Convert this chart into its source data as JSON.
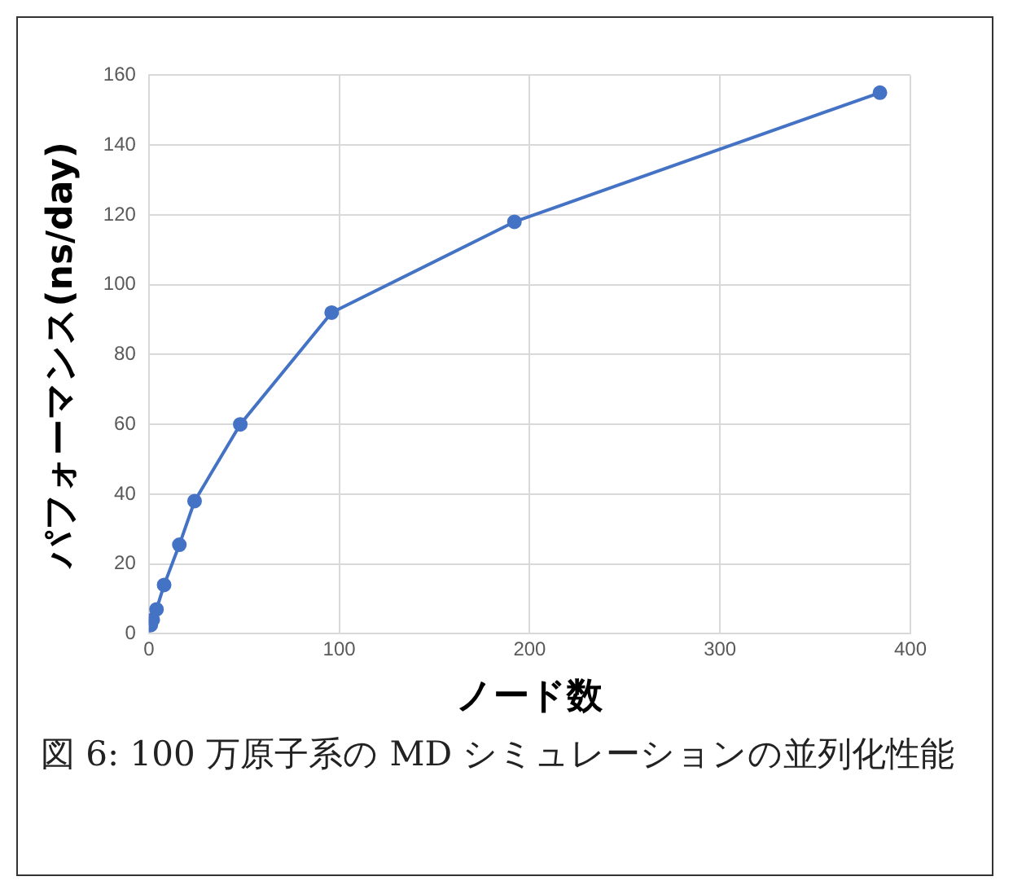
{
  "chart_data": {
    "type": "line",
    "xlabel": "ノード数",
    "ylabel": "パフォーマンス(ns/day)",
    "x": [
      1,
      2,
      4,
      8,
      16,
      24,
      48,
      96,
      192,
      384
    ],
    "series": [
      {
        "color": "#4472c4",
        "values": [
          2.5,
          4,
          7,
          14,
          25.5,
          38,
          60,
          92,
          118,
          155
        ]
      }
    ],
    "xlim": [
      0,
      400
    ],
    "xticks": [
      0,
      100,
      200,
      300,
      400
    ],
    "ylim": [
      0,
      160
    ],
    "yticks": [
      0,
      20,
      40,
      60,
      80,
      100,
      120,
      140,
      160
    ],
    "grid": true,
    "legend": false,
    "marker": "circle",
    "line_style": "solid",
    "annotations": [
      "図 6: 100 万原子系の MD シミュレーションの並列化性能"
    ]
  }
}
